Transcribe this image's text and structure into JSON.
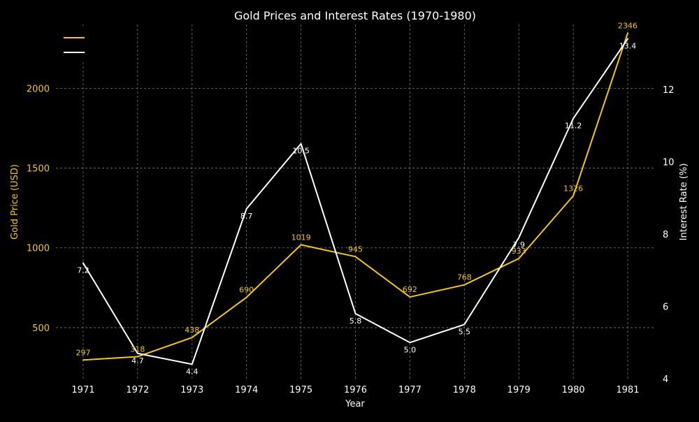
{
  "chart_data": {
    "type": "line",
    "title": "Gold Prices and Interest Rates (1970-1980)",
    "xlabel": "Year",
    "ylabel_left": "Gold Price (USD)",
    "ylabel_right": "Interest Rate (%)",
    "x": [
      1971,
      1972,
      1973,
      1974,
      1975,
      1976,
      1977,
      1978,
      1979,
      1980,
      1981
    ],
    "x_ticks": [
      "1971",
      "1972",
      "1973",
      "1974",
      "1975",
      "1976",
      "1977",
      "1978",
      "1979",
      "1980",
      "1981"
    ],
    "ylim_left": [
      180,
      2400
    ],
    "ylim_right": [
      4.0,
      13.8
    ],
    "yticks_left": [
      "500",
      "1000",
      "1500",
      "2000"
    ],
    "yticks_right": [
      "4",
      "6",
      "8",
      "10",
      "12"
    ],
    "grid": true,
    "legend_placement": "top-left",
    "series": [
      {
        "axis": "left",
        "color": "#f5c518",
        "values": [
          297,
          318,
          438,
          690,
          1019,
          945,
          692,
          768,
          933,
          1326,
          2346
        ],
        "labels": [
          "297",
          "318",
          "438",
          "690",
          "1019",
          "945",
          "692",
          "768",
          "933",
          "1326",
          "2346"
        ]
      },
      {
        "axis": "right",
        "color": "#ffffff",
        "values": [
          7.2,
          4.7,
          4.4,
          8.7,
          10.5,
          5.8,
          5.0,
          5.5,
          7.9,
          11.2,
          13.4
        ],
        "labels": [
          "7.2",
          "4.7",
          "4.4",
          "8.7",
          "10.5",
          "5.8",
          "5.0",
          "5.5",
          "7.9",
          "11.2",
          "13.4"
        ]
      }
    ]
  }
}
